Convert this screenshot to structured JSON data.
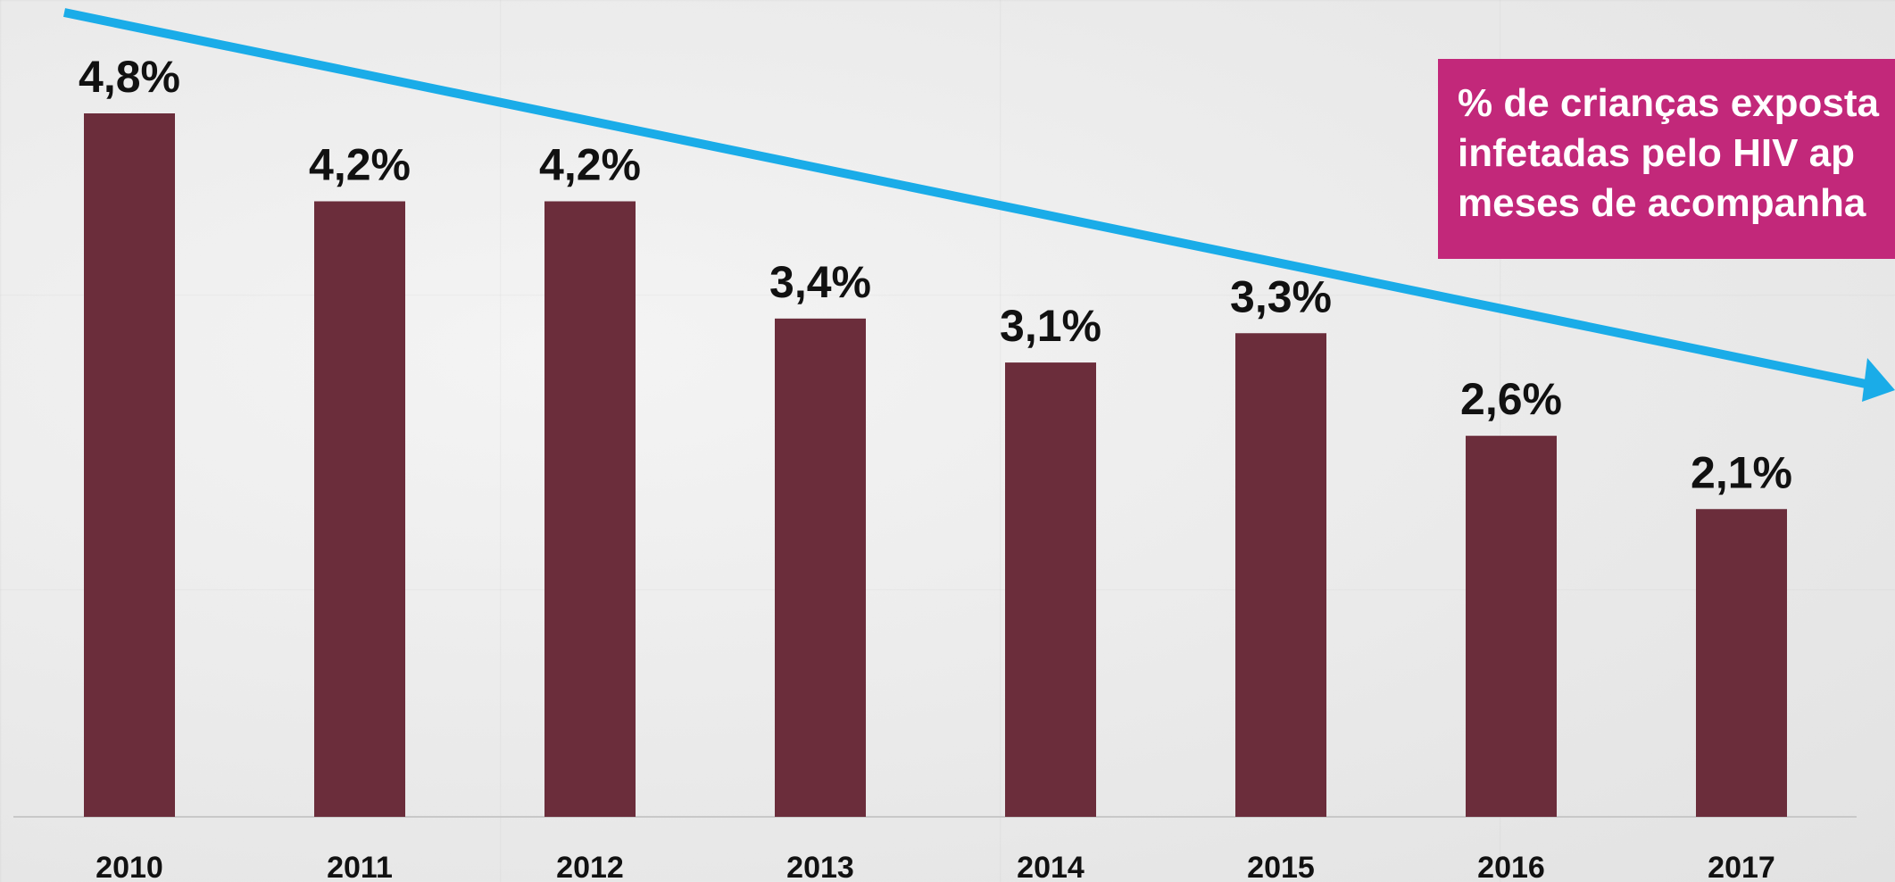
{
  "colors": {
    "bar": "#6b2d3b",
    "trend_arrow": "#1aace8",
    "annotation_background": "#c2287a",
    "annotation_text": "#ffffff",
    "label_text": "#111111"
  },
  "annotation": {
    "lines": [
      "% de crianças exposta",
      "infetadas pelo HIV ap",
      "meses de acompanha"
    ]
  },
  "chart_data": {
    "type": "bar",
    "categories": [
      "2010",
      "2011",
      "2012",
      "2013",
      "2014",
      "2015",
      "2016",
      "2017"
    ],
    "values": [
      4.8,
      4.2,
      4.2,
      3.4,
      3.1,
      3.3,
      2.6,
      2.1
    ],
    "data_labels": [
      "4,8%",
      "4,2%",
      "4,2%",
      "3,4%",
      "3,1%",
      "3,3%",
      "2,6%",
      "2,1%"
    ],
    "ylim": [
      0,
      5.5
    ],
    "grid": false,
    "trend": "decreasing"
  }
}
